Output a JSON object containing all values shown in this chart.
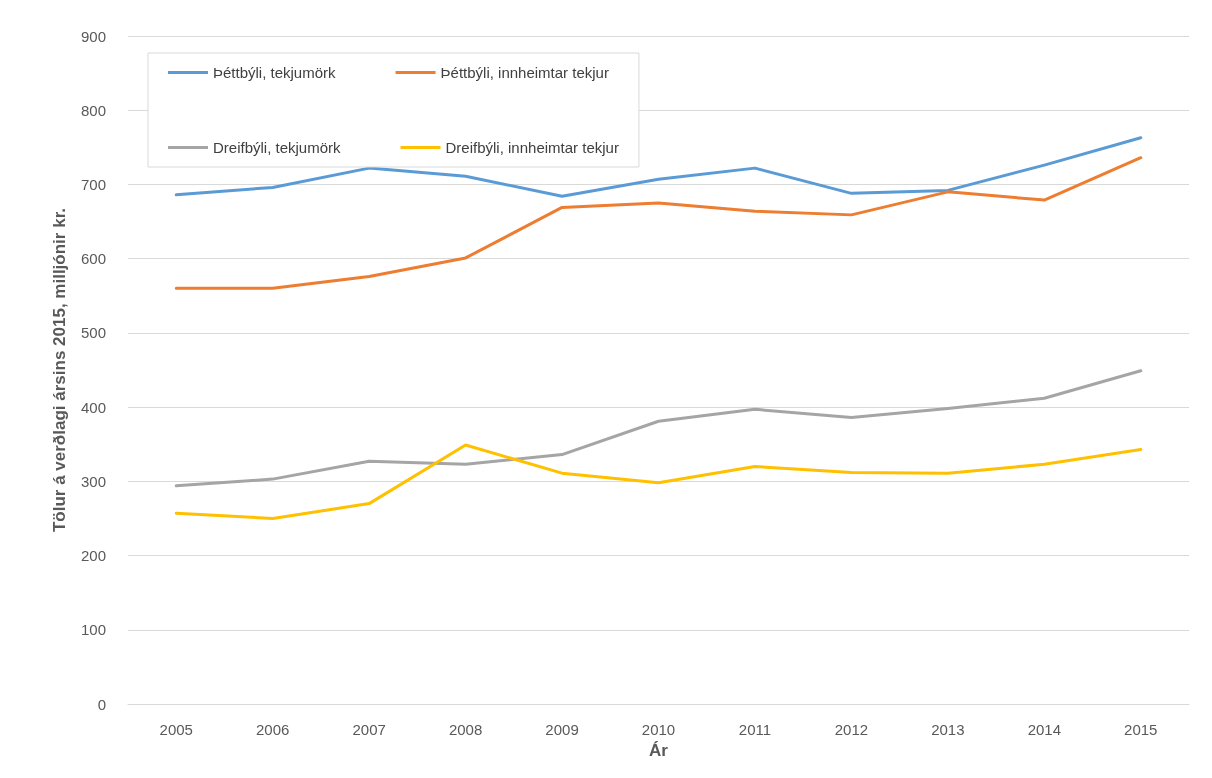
{
  "chart_data": {
    "type": "line",
    "xlabel": "Ár",
    "ylabel": "Tölur á verðlagi ársins 2015, milljónir kr.",
    "categories": [
      "2005",
      "2006",
      "2007",
      "2008",
      "2009",
      "2010",
      "2011",
      "2012",
      "2013",
      "2014",
      "2015"
    ],
    "series": [
      {
        "name": "Þéttbýli, tekjumörk",
        "color": "#5b9bd5",
        "values": [
          686,
          696,
          722,
          711,
          684,
          707,
          722,
          688,
          692,
          726,
          763
        ]
      },
      {
        "name": "Þéttbýli, innheimtar tekjur",
        "color": "#ed7d31",
        "values": [
          560,
          560,
          576,
          601,
          669,
          675,
          664,
          659,
          690,
          679,
          736
        ]
      },
      {
        "name": "Dreifbýli, tekjumörk",
        "color": "#a5a5a5",
        "values": [
          294,
          303,
          327,
          323,
          336,
          381,
          397,
          386,
          398,
          412,
          449
        ]
      },
      {
        "name": "Dreifbýli, innheimtar tekjur",
        "color": "#ffc000",
        "values": [
          257,
          250,
          270,
          349,
          311,
          298,
          320,
          312,
          311,
          323,
          343
        ]
      }
    ],
    "ylim": [
      0,
      900
    ],
    "yticks": [
      0,
      100,
      200,
      300,
      400,
      500,
      600,
      700,
      800,
      900
    ],
    "grid": "y",
    "legend": "top left",
    "marker": "none",
    "line_style": "solid"
  }
}
